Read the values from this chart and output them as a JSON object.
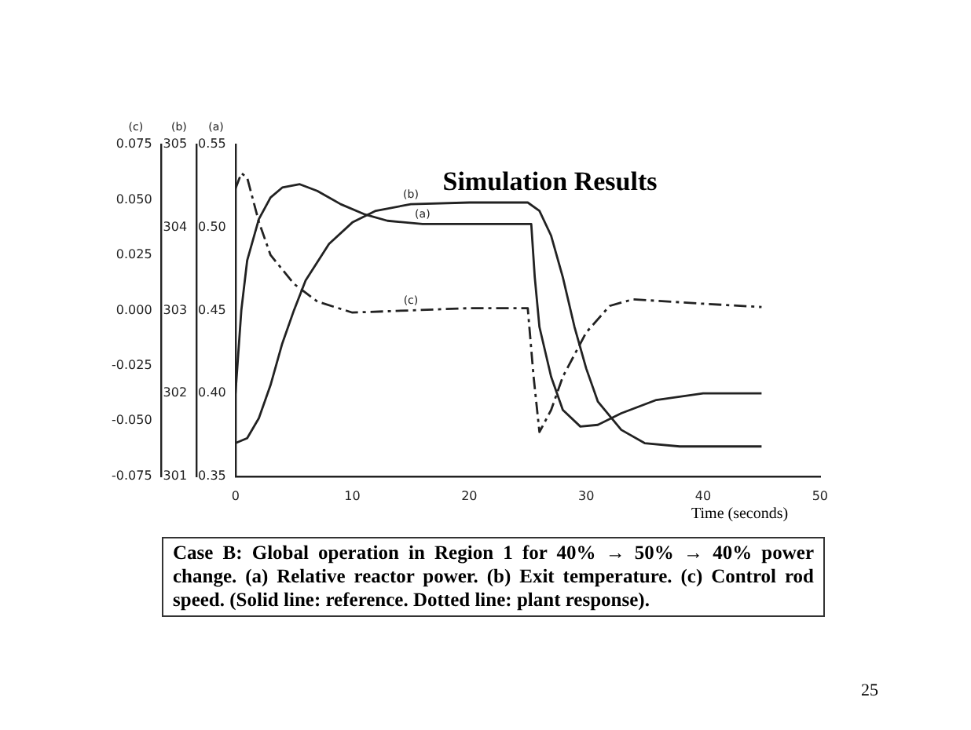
{
  "chart_data": {
    "type": "line",
    "title": "Simulation Results",
    "xlabel": "Time (seconds)",
    "ylabel": "(a)",
    "y2label": "(b)",
    "y3label": "(c)",
    "xlim": [
      0,
      50
    ],
    "xticks": [
      0,
      10,
      20,
      30,
      40,
      50
    ],
    "ylim": [
      0.35,
      0.55
    ],
    "yticks": [
      {
        "value": 0.35,
        "label": "0.35"
      },
      {
        "value": 0.4,
        "label": "0.40"
      },
      {
        "value": 0.45,
        "label": "0.45"
      },
      {
        "value": 0.5,
        "label": "0.50"
      },
      {
        "value": 0.55,
        "label": "0.55"
      }
    ],
    "y2lim": [
      301,
      305
    ],
    "y2ticks": [
      301,
      302,
      303,
      304,
      305
    ],
    "y3lim": [
      -0.075,
      0.075
    ],
    "y3ticks": [
      {
        "value": -0.075,
        "label": "-0.075"
      },
      {
        "value": -0.05,
        "label": "-0.050"
      },
      {
        "value": -0.025,
        "label": "-0.025"
      },
      {
        "value": 0,
        "label": "0.000"
      },
      {
        "value": 0.025,
        "label": "0.025"
      },
      {
        "value": 0.05,
        "label": "0.050"
      },
      {
        "value": 0.075,
        "label": "0.075"
      }
    ],
    "grid": false,
    "legend": false,
    "marker": "none",
    "series": [
      {
        "name": "(a)",
        "color": "#222222",
        "line_style": "solid",
        "axis": "y",
        "x": [
          0,
          0.5,
          1,
          2,
          3,
          4,
          5.5,
          7,
          9,
          11,
          13,
          16,
          20,
          25.3,
          25.6,
          26,
          27,
          28,
          29.5,
          31,
          33,
          36,
          40,
          45
        ],
        "values": [
          0.4,
          0.45,
          0.48,
          0.505,
          0.518,
          0.524,
          0.526,
          0.522,
          0.514,
          0.508,
          0.504,
          0.502,
          0.502,
          0.502,
          0.47,
          0.44,
          0.41,
          0.39,
          0.38,
          0.381,
          0.388,
          0.396,
          0.4,
          0.4
        ]
      },
      {
        "name": "(b)",
        "color": "#222222",
        "line_style": "solid",
        "axis": "y2",
        "x": [
          0,
          1,
          2,
          3,
          4,
          5,
          6,
          8,
          10,
          12,
          15,
          20,
          25,
          26,
          27,
          28,
          29,
          30,
          31,
          33,
          35,
          38,
          40,
          45
        ],
        "values": [
          301.4,
          301.46,
          301.7,
          302.1,
          302.6,
          303.0,
          303.36,
          303.8,
          304.06,
          304.2,
          304.28,
          304.3,
          304.3,
          304.2,
          303.9,
          303.4,
          302.8,
          302.3,
          301.9,
          301.56,
          301.4,
          301.36,
          301.36,
          301.36
        ]
      },
      {
        "name": "(c)",
        "color": "#222222",
        "line_style": "dashed",
        "axis": "y3",
        "x": [
          0,
          0.5,
          1,
          2,
          3,
          5,
          7,
          10,
          15,
          20,
          25,
          25.5,
          26,
          27,
          28,
          30,
          32,
          34,
          40,
          45
        ],
        "values": [
          0.055,
          0.062,
          0.06,
          0.04,
          0.025,
          0.012,
          0.004,
          -0.001,
          0,
          0.001,
          0.001,
          -0.03,
          -0.055,
          -0.045,
          -0.03,
          -0.01,
          0.002,
          0.005,
          0.003,
          0.0015
        ]
      }
    ],
    "annotations": [
      "Case B: Global operation in Region 1 for 40% → 50% → 40% power change. (a) Relative reactor power. (b) Exit temperature. (c) Control rod speed. (Solid line: reference. Dotted line: plant response).",
      "25"
    ]
  }
}
